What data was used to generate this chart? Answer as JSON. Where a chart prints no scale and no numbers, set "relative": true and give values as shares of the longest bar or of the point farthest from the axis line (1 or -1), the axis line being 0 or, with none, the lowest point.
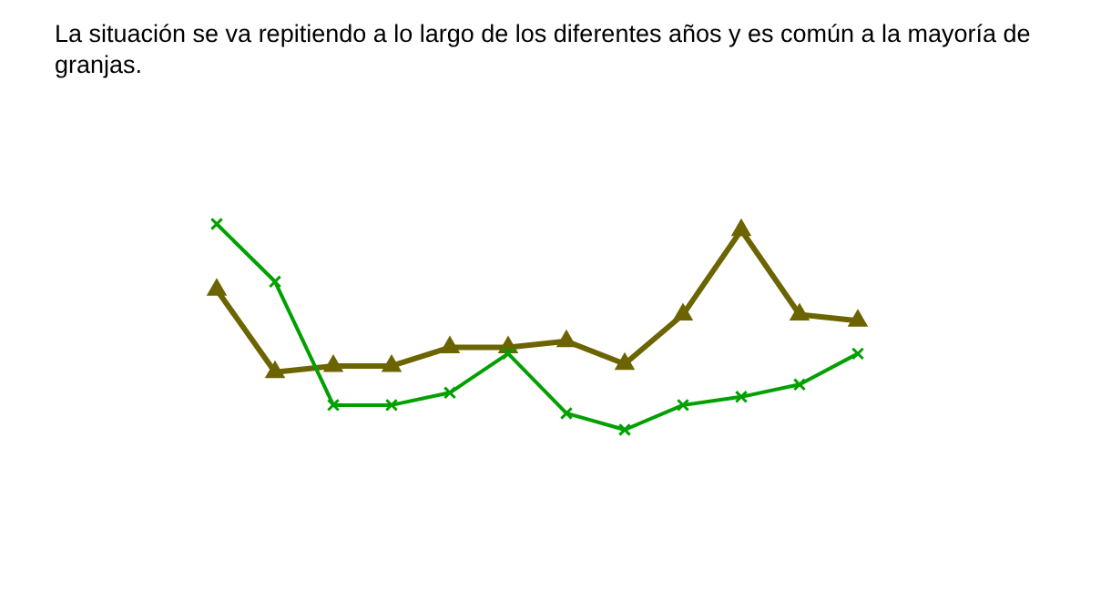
{
  "chart_data": {
    "type": "line",
    "title": "La situación se va repitiendo a lo largo de los diferentes años y es común a la mayoría de granjas.",
    "relative": true,
    "categories": [
      null,
      null,
      null,
      null,
      null,
      null,
      null,
      null,
      null,
      null,
      null,
      null
    ],
    "legend": false,
    "grid": false,
    "series": [
      {
        "color": "#00a000",
        "marker": "cross",
        "values": [
          1,
          0.72,
          0.12,
          0.12,
          0.18,
          0.37,
          0.08,
          0,
          0.12,
          0.16,
          0.22,
          0.37
        ]
      },
      {
        "color": "#6b6400",
        "marker": "triangle",
        "values": [
          0.68,
          0.28,
          0.31,
          0.31,
          0.4,
          0.4,
          0.43,
          0.32,
          0.56,
          0.97,
          0.56,
          0.53
        ]
      }
    ]
  }
}
